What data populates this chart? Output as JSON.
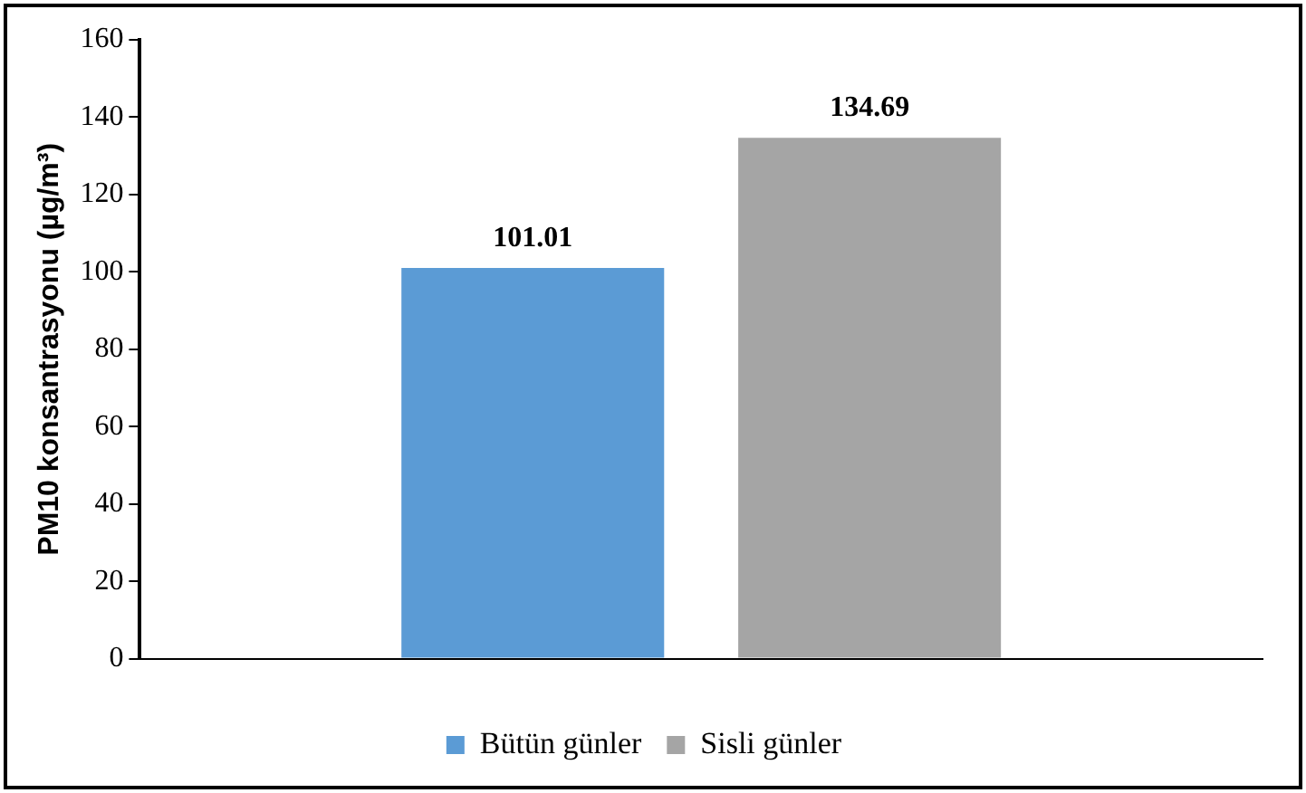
{
  "chart_data": {
    "type": "bar",
    "ylabel": "PM10 konsantrasyonu (µg/m³)",
    "categories": [
      null
    ],
    "series": [
      {
        "name": "Bütün günler",
        "color": "#5b9bd5",
        "values": [
          101.01
        ]
      },
      {
        "name": "Sisli günler",
        "color": "#a5a5a5",
        "values": [
          134.69
        ]
      }
    ],
    "ylim": [
      0,
      160
    ],
    "yticks": [
      0,
      20,
      40,
      60,
      80,
      100,
      120,
      140,
      160
    ],
    "grid": false,
    "legend": "bottom",
    "data_labels": true
  }
}
